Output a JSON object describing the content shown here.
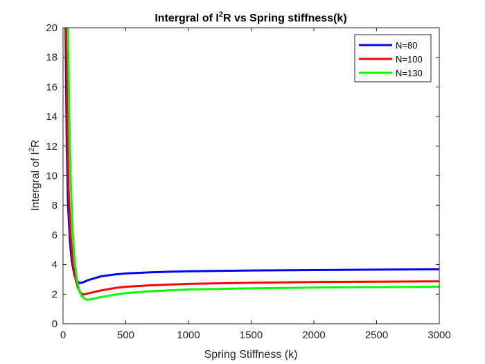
{
  "chart_data": {
    "type": "line",
    "title": "Intergral of I2R vs Spring stiffness(k)",
    "title_parts": {
      "pre": "Intergral of I",
      "sup": "2",
      "post": "R vs Spring stiffness(k)"
    },
    "xlabel": "Spring Stiffness (k)",
    "ylabel_parts": {
      "pre": "Intergral of I",
      "sup": "2",
      "post": "R"
    },
    "xlim": [
      0,
      3000
    ],
    "ylim": [
      0,
      20
    ],
    "xticks": [
      0,
      500,
      1000,
      1500,
      2000,
      2500,
      3000
    ],
    "yticks": [
      0,
      2,
      4,
      6,
      8,
      10,
      12,
      14,
      16,
      18,
      20
    ],
    "grid": false,
    "legend_location": "top-right",
    "series": [
      {
        "name": "N=80",
        "color": "#0000ff",
        "points": [
          [
            20,
            20
          ],
          [
            30,
            12
          ],
          [
            40,
            8
          ],
          [
            55,
            5.5
          ],
          [
            70,
            4.2
          ],
          [
            90,
            3.3
          ],
          [
            110,
            2.9
          ],
          [
            130,
            2.75
          ],
          [
            160,
            2.8
          ],
          [
            200,
            2.95
          ],
          [
            300,
            3.2
          ],
          [
            400,
            3.32
          ],
          [
            500,
            3.4
          ],
          [
            700,
            3.48
          ],
          [
            1000,
            3.55
          ],
          [
            1500,
            3.6
          ],
          [
            2000,
            3.63
          ],
          [
            2500,
            3.66
          ],
          [
            3000,
            3.68
          ]
        ]
      },
      {
        "name": "N=100",
        "color": "#ff0000",
        "points": [
          [
            25,
            20
          ],
          [
            35,
            13
          ],
          [
            45,
            9
          ],
          [
            60,
            6
          ],
          [
            80,
            4
          ],
          [
            100,
            3
          ],
          [
            120,
            2.4
          ],
          [
            140,
            2.1
          ],
          [
            160,
            1.97
          ],
          [
            200,
            2.05
          ],
          [
            300,
            2.25
          ],
          [
            400,
            2.4
          ],
          [
            500,
            2.5
          ],
          [
            700,
            2.6
          ],
          [
            1000,
            2.7
          ],
          [
            1500,
            2.77
          ],
          [
            2000,
            2.82
          ],
          [
            2500,
            2.85
          ],
          [
            3000,
            2.87
          ]
        ]
      },
      {
        "name": "N=130",
        "color": "#00ff00",
        "points": [
          [
            40,
            20
          ],
          [
            50,
            14
          ],
          [
            60,
            10
          ],
          [
            75,
            6.5
          ],
          [
            90,
            4.5
          ],
          [
            110,
            3
          ],
          [
            130,
            2.2
          ],
          [
            150,
            1.85
          ],
          [
            180,
            1.65
          ],
          [
            200,
            1.62
          ],
          [
            250,
            1.7
          ],
          [
            300,
            1.8
          ],
          [
            400,
            1.95
          ],
          [
            500,
            2.07
          ],
          [
            700,
            2.2
          ],
          [
            1000,
            2.32
          ],
          [
            1500,
            2.4
          ],
          [
            2000,
            2.45
          ],
          [
            2500,
            2.48
          ],
          [
            3000,
            2.5
          ]
        ]
      }
    ]
  }
}
